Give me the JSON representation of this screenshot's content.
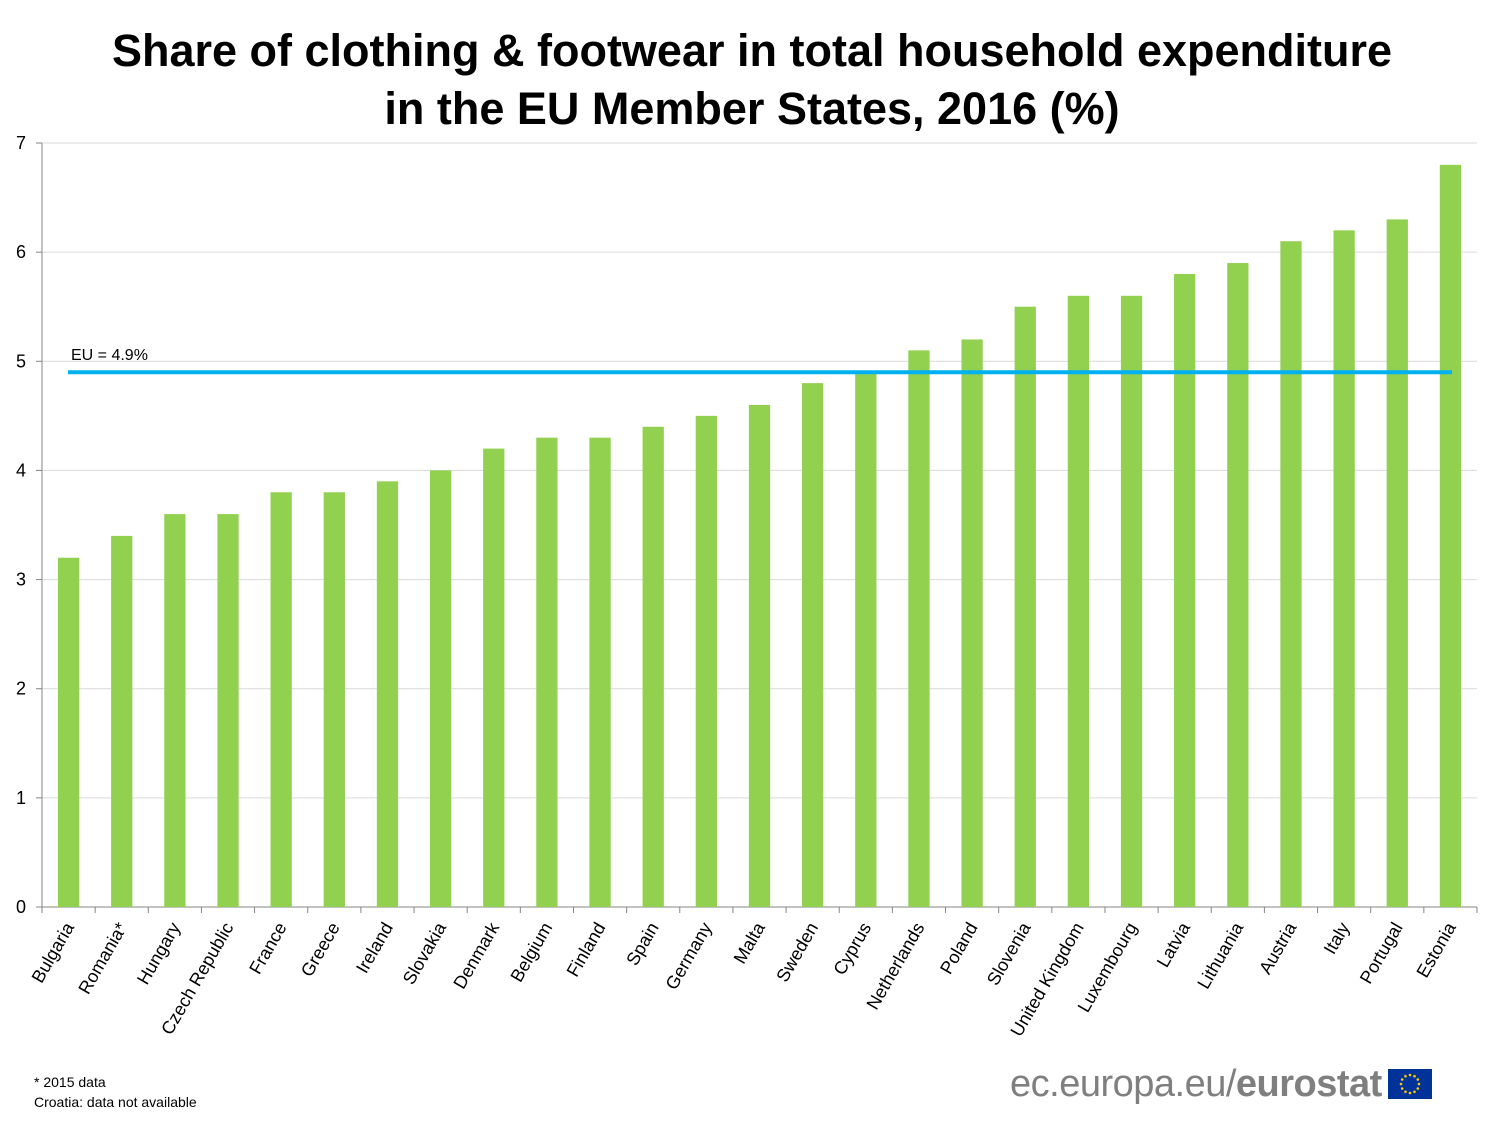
{
  "title_line1": "Share of clothing & footwear in total household expenditure",
  "title_line2": "in the EU Member States, 2016 (%)",
  "chart_data": {
    "type": "bar",
    "title": "Share of clothing & footwear in total household expenditure in the EU Member States, 2016 (%)",
    "xlabel": "",
    "ylabel": "",
    "ylim": [
      0,
      7
    ],
    "yticks": [
      0,
      1,
      2,
      3,
      4,
      5,
      6,
      7
    ],
    "grid": true,
    "categories": [
      "Bulgaria",
      "Romania*",
      "Hungary",
      "Czech Republic",
      "France",
      "Greece",
      "Ireland",
      "Slovakia",
      "Denmark",
      "Belgium",
      "Finland",
      "Spain",
      "Germany",
      "Malta",
      "Sweden",
      "Cyprus",
      "Netherlands",
      "Poland",
      "Slovenia",
      "United Kingdom",
      "Luxembourg",
      "Latvia",
      "Lithuania",
      "Austria",
      "Italy",
      "Portugal",
      "Estonia"
    ],
    "values": [
      3.2,
      3.4,
      3.6,
      3.6,
      3.8,
      3.8,
      3.9,
      4.0,
      4.2,
      4.3,
      4.3,
      4.4,
      4.5,
      4.6,
      4.8,
      4.9,
      5.1,
      5.2,
      5.5,
      5.6,
      5.6,
      5.8,
      5.9,
      6.1,
      6.2,
      6.3,
      6.8
    ],
    "reference_line": {
      "value": 4.9,
      "label": "EU = 4.9%"
    },
    "colors": {
      "bar": "#92d050",
      "reference": "#00b0f0",
      "grid": "#d9d9d9",
      "axis": "#868686"
    }
  },
  "footnotes": [
    "* 2015 data",
    "Croatia: data not available"
  ],
  "brand": {
    "prefix": "ec.europa.eu/",
    "name": "eurostat"
  },
  "logo_icon": "eu-flag-icon"
}
